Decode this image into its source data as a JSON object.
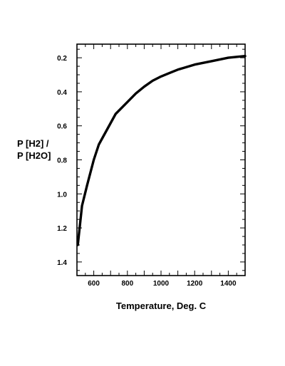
{
  "chart_data": {
    "type": "line",
    "title": "",
    "xlabel": "Temperature, Deg. C",
    "ylabel_lines": [
      "P [H2] /",
      "P [H2O]"
    ],
    "xlim": [
      500,
      1500
    ],
    "ylim": [
      0.12,
      1.48
    ],
    "y_inverted": true,
    "x_ticks": [
      600,
      800,
      1000,
      1200,
      1400
    ],
    "y_ticks": [
      "0.2",
      "0.4",
      "0.6",
      "0.8",
      "1.0",
      "1.2",
      "1.4"
    ],
    "grid": false,
    "legend": "none",
    "series": [
      {
        "color": "#000000",
        "x": [
          505,
          530,
          560,
          600,
          630,
          680,
          730,
          800,
          850,
          900,
          950,
          1000,
          1050,
          1100,
          1200,
          1300,
          1400,
          1500
        ],
        "y": [
          1.3,
          1.07,
          0.95,
          0.8,
          0.71,
          0.62,
          0.53,
          0.46,
          0.41,
          0.37,
          0.335,
          0.31,
          0.29,
          0.27,
          0.24,
          0.22,
          0.2,
          0.19
        ]
      }
    ]
  }
}
